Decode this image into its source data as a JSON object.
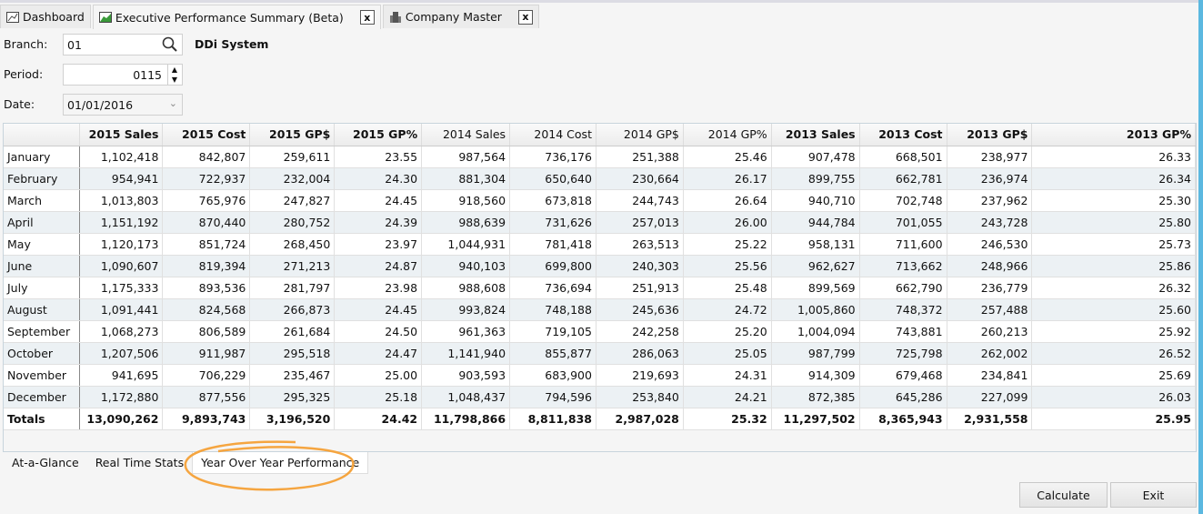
{
  "tabs": [
    {
      "label": "Dashboard",
      "icon": "chart-icon"
    },
    {
      "label": "Executive Performance Summary (Beta)",
      "icon": "area-chart-icon",
      "close": "x"
    },
    {
      "label": "Company Master",
      "icon": "building-icon",
      "close": "x"
    }
  ],
  "form": {
    "branch_label": "Branch:",
    "branch_value": "01",
    "period_label": "Period:",
    "period_value": "0115",
    "date_label": "Date:",
    "date_value": "01/01/2016",
    "system_name": "DDi System"
  },
  "table": {
    "columns": [
      {
        "label": "",
        "bold": false
      },
      {
        "label": "2015 Sales",
        "bold": true
      },
      {
        "label": "2015 Cost",
        "bold": true
      },
      {
        "label": "2015 GP$",
        "bold": true
      },
      {
        "label": "2015 GP%",
        "bold": true
      },
      {
        "label": "2014 Sales",
        "bold": false
      },
      {
        "label": "2014 Cost",
        "bold": false
      },
      {
        "label": "2014 GP$",
        "bold": false
      },
      {
        "label": "2014 GP%",
        "bold": false
      },
      {
        "label": "2013 Sales",
        "bold": true
      },
      {
        "label": "2013 Cost",
        "bold": true
      },
      {
        "label": "2013 GP$",
        "bold": true
      },
      {
        "label": "2013 GP%",
        "bold": true
      }
    ],
    "rows": [
      [
        "January",
        "1,102,418",
        "842,807",
        "259,611",
        "23.55",
        "987,564",
        "736,176",
        "251,388",
        "25.46",
        "907,478",
        "668,501",
        "238,977",
        "26.33"
      ],
      [
        "February",
        "954,941",
        "722,937",
        "232,004",
        "24.30",
        "881,304",
        "650,640",
        "230,664",
        "26.17",
        "899,755",
        "662,781",
        "236,974",
        "26.34"
      ],
      [
        "March",
        "1,013,803",
        "765,976",
        "247,827",
        "24.45",
        "918,560",
        "673,818",
        "244,743",
        "26.64",
        "940,710",
        "702,748",
        "237,962",
        "25.30"
      ],
      [
        "April",
        "1,151,192",
        "870,440",
        "280,752",
        "24.39",
        "988,639",
        "731,626",
        "257,013",
        "26.00",
        "944,784",
        "701,055",
        "243,728",
        "25.80"
      ],
      [
        "May",
        "1,120,173",
        "851,724",
        "268,450",
        "23.97",
        "1,044,931",
        "781,418",
        "263,513",
        "25.22",
        "958,131",
        "711,600",
        "246,530",
        "25.73"
      ],
      [
        "June",
        "1,090,607",
        "819,394",
        "271,213",
        "24.87",
        "940,103",
        "699,800",
        "240,303",
        "25.56",
        "962,627",
        "713,662",
        "248,966",
        "25.86"
      ],
      [
        "July",
        "1,175,333",
        "893,536",
        "281,797",
        "23.98",
        "988,608",
        "736,694",
        "251,913",
        "25.48",
        "899,569",
        "662,790",
        "236,779",
        "26.32"
      ],
      [
        "August",
        "1,091,441",
        "824,568",
        "266,873",
        "24.45",
        "993,824",
        "748,188",
        "245,636",
        "24.72",
        "1,005,860",
        "748,372",
        "257,488",
        "25.60"
      ],
      [
        "September",
        "1,068,273",
        "806,589",
        "261,684",
        "24.50",
        "961,363",
        "719,105",
        "242,258",
        "25.20",
        "1,004,094",
        "743,881",
        "260,213",
        "25.92"
      ],
      [
        "October",
        "1,207,506",
        "911,987",
        "295,518",
        "24.47",
        "1,141,940",
        "855,877",
        "286,063",
        "25.05",
        "987,799",
        "725,798",
        "262,002",
        "26.52"
      ],
      [
        "November",
        "941,695",
        "706,229",
        "235,467",
        "25.00",
        "903,593",
        "683,900",
        "219,693",
        "24.31",
        "914,309",
        "679,468",
        "234,841",
        "25.69"
      ],
      [
        "December",
        "1,172,880",
        "877,556",
        "295,325",
        "25.18",
        "1,048,437",
        "794,596",
        "253,840",
        "24.21",
        "872,385",
        "645,286",
        "227,099",
        "26.03"
      ]
    ],
    "totals": [
      "Totals",
      "13,090,262",
      "9,893,743",
      "3,196,520",
      "24.42",
      "11,798,866",
      "8,811,838",
      "2,987,028",
      "25.32",
      "11,297,502",
      "8,365,943",
      "2,931,558",
      "25.95"
    ]
  },
  "bottom_tabs": [
    {
      "label": "At-a-Glance"
    },
    {
      "label": "Real Time Stats"
    },
    {
      "label": "Year Over Year Performance",
      "active": true
    }
  ],
  "buttons": {
    "calculate": "Calculate",
    "exit": "Exit"
  },
  "colors": {
    "highlight_circle": "#f5a540",
    "row_alt": "#ecf1f4"
  }
}
